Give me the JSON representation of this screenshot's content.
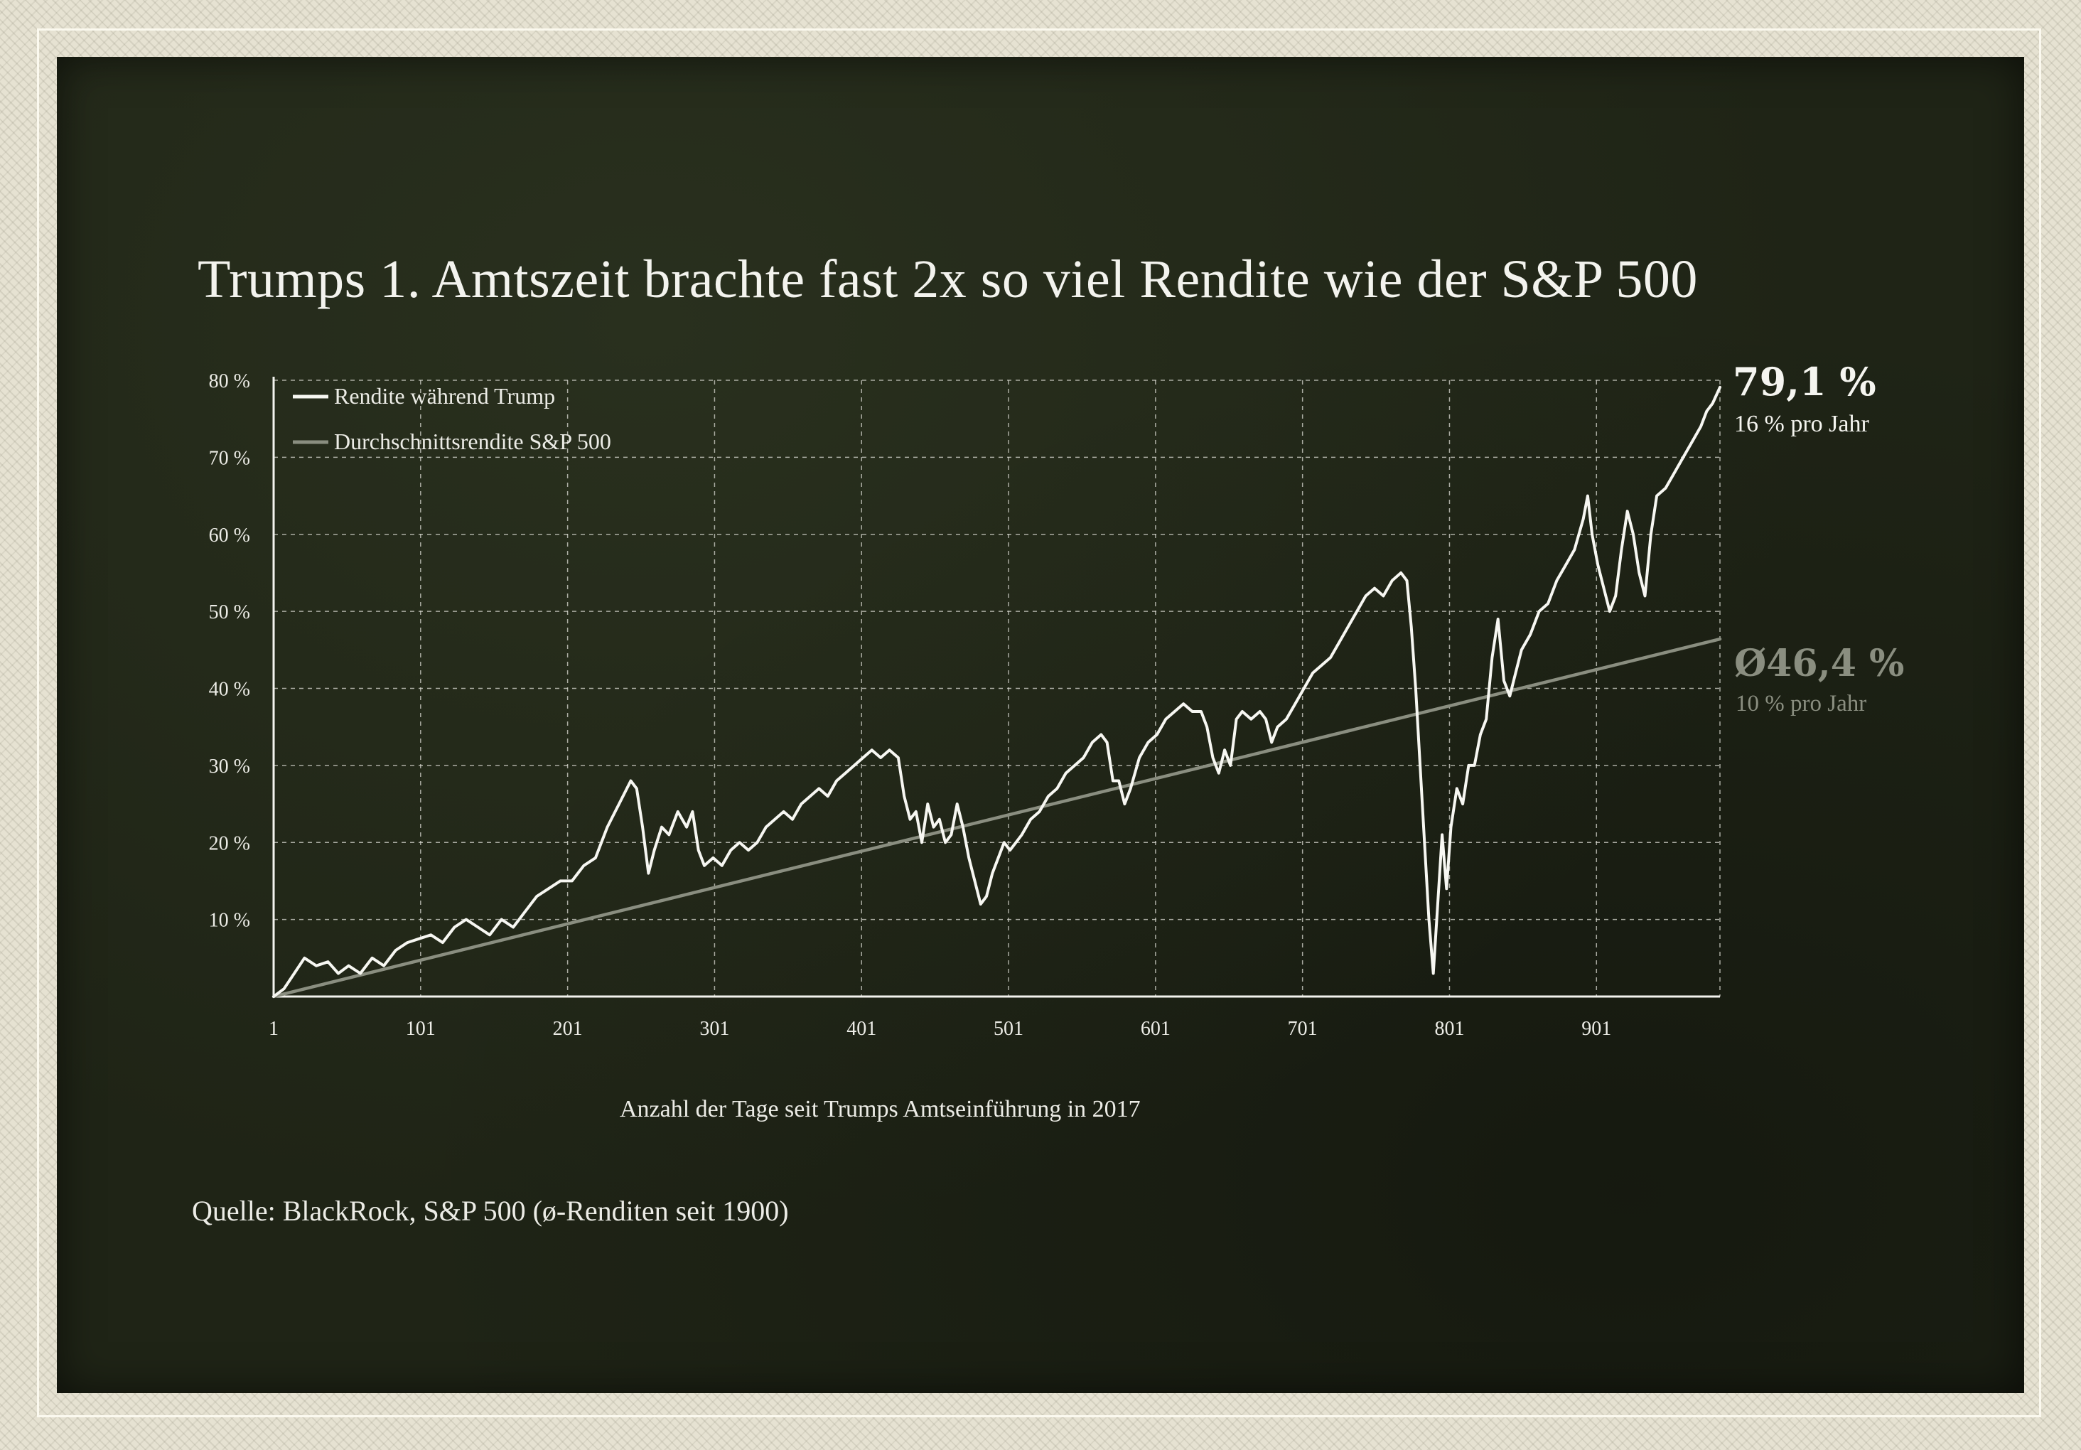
{
  "title": "Trumps 1. Amtszeit brachte fast 2x so viel Rendite wie der S&P 500",
  "source": "Quelle: BlackRock, S&P 500 (ø-Renditen seit 1900)",
  "annotations": {
    "trump_value": "79,1 %",
    "trump_sub": "16 % pro Jahr",
    "avg_value": "Ø46,4 %",
    "avg_sub": "10 % pro Jahr"
  },
  "colors": {
    "background": "#1f2416",
    "trump_line": "#f7f7f2",
    "avg_line": "#8a8e80",
    "grid": "#d8d8d0"
  },
  "chart_data": {
    "type": "line",
    "title": "Trumps 1. Amtszeit brachte fast 2x so viel Rendite wie der S&P 500",
    "xlabel": "Anzahl der Tage seit Trumps Amtseinführung in 2017",
    "ylabel": "",
    "xlim": [
      1,
      985
    ],
    "ylim": [
      0,
      80
    ],
    "x_ticks": [
      1,
      101,
      201,
      301,
      401,
      501,
      601,
      701,
      801,
      901
    ],
    "x_tick_labels": [
      "1",
      "101",
      "201",
      "301",
      "401",
      "501",
      "601",
      "701",
      "801",
      "901"
    ],
    "y_ticks": [
      10,
      20,
      30,
      40,
      50,
      60,
      70,
      80
    ],
    "y_tick_labels": [
      "10 %",
      "20 %",
      "30 %",
      "40 %",
      "50 %",
      "60 %",
      "70 %",
      "80 %"
    ],
    "grid": true,
    "legend_position": "top-left",
    "series": [
      {
        "name": "Rendite während Trump",
        "color": "#f7f7f2",
        "points": [
          [
            1,
            0
          ],
          [
            8,
            1
          ],
          [
            15,
            3
          ],
          [
            22,
            5
          ],
          [
            30,
            4
          ],
          [
            38,
            4.5
          ],
          [
            45,
            3
          ],
          [
            52,
            4
          ],
          [
            60,
            3
          ],
          [
            68,
            5
          ],
          [
            76,
            4
          ],
          [
            84,
            6
          ],
          [
            92,
            7
          ],
          [
            100,
            7.5
          ],
          [
            108,
            8
          ],
          [
            116,
            7
          ],
          [
            124,
            9
          ],
          [
            132,
            10
          ],
          [
            140,
            9
          ],
          [
            148,
            8
          ],
          [
            156,
            10
          ],
          [
            164,
            9
          ],
          [
            172,
            11
          ],
          [
            180,
            13
          ],
          [
            188,
            14
          ],
          [
            196,
            15
          ],
          [
            204,
            15
          ],
          [
            212,
            17
          ],
          [
            220,
            18
          ],
          [
            228,
            22
          ],
          [
            236,
            25
          ],
          [
            244,
            28
          ],
          [
            248,
            27
          ],
          [
            252,
            22
          ],
          [
            256,
            16
          ],
          [
            260,
            19
          ],
          [
            265,
            22
          ],
          [
            270,
            21
          ],
          [
            276,
            24
          ],
          [
            282,
            22
          ],
          [
            286,
            24
          ],
          [
            290,
            19
          ],
          [
            294,
            17
          ],
          [
            300,
            18
          ],
          [
            306,
            17
          ],
          [
            312,
            19
          ],
          [
            318,
            20
          ],
          [
            324,
            19
          ],
          [
            330,
            20
          ],
          [
            336,
            22
          ],
          [
            342,
            23
          ],
          [
            348,
            24
          ],
          [
            354,
            23
          ],
          [
            360,
            25
          ],
          [
            366,
            26
          ],
          [
            372,
            27
          ],
          [
            378,
            26
          ],
          [
            384,
            28
          ],
          [
            390,
            29
          ],
          [
            396,
            30
          ],
          [
            402,
            31
          ],
          [
            408,
            32
          ],
          [
            414,
            31
          ],
          [
            420,
            32
          ],
          [
            426,
            31
          ],
          [
            430,
            26
          ],
          [
            434,
            23
          ],
          [
            438,
            24
          ],
          [
            442,
            20
          ],
          [
            446,
            25
          ],
          [
            450,
            22
          ],
          [
            454,
            23
          ],
          [
            458,
            20
          ],
          [
            462,
            21
          ],
          [
            466,
            25
          ],
          [
            470,
            22
          ],
          [
            474,
            18
          ],
          [
            478,
            15
          ],
          [
            482,
            12
          ],
          [
            486,
            13
          ],
          [
            490,
            16
          ],
          [
            494,
            18
          ],
          [
            498,
            20
          ],
          [
            502,
            19
          ],
          [
            506,
            20
          ],
          [
            510,
            21
          ],
          [
            516,
            23
          ],
          [
            522,
            24
          ],
          [
            528,
            26
          ],
          [
            534,
            27
          ],
          [
            540,
            29
          ],
          [
            546,
            30
          ],
          [
            552,
            31
          ],
          [
            558,
            33
          ],
          [
            564,
            34
          ],
          [
            568,
            33
          ],
          [
            572,
            28
          ],
          [
            576,
            28
          ],
          [
            580,
            25
          ],
          [
            584,
            27
          ],
          [
            590,
            31
          ],
          [
            596,
            33
          ],
          [
            602,
            34
          ],
          [
            608,
            36
          ],
          [
            614,
            37
          ],
          [
            620,
            38
          ],
          [
            626,
            37
          ],
          [
            632,
            37
          ],
          [
            636,
            35
          ],
          [
            640,
            31
          ],
          [
            644,
            29
          ],
          [
            648,
            32
          ],
          [
            652,
            30
          ],
          [
            656,
            36
          ],
          [
            660,
            37
          ],
          [
            666,
            36
          ],
          [
            672,
            37
          ],
          [
            676,
            36
          ],
          [
            680,
            33
          ],
          [
            684,
            35
          ],
          [
            690,
            36
          ],
          [
            696,
            38
          ],
          [
            702,
            40
          ],
          [
            708,
            42
          ],
          [
            714,
            43
          ],
          [
            720,
            44
          ],
          [
            726,
            46
          ],
          [
            732,
            48
          ],
          [
            738,
            50
          ],
          [
            744,
            52
          ],
          [
            750,
            53
          ],
          [
            756,
            52
          ],
          [
            762,
            54
          ],
          [
            768,
            55
          ],
          [
            772,
            54
          ],
          [
            775,
            48
          ],
          [
            778,
            40
          ],
          [
            781,
            30
          ],
          [
            784,
            20
          ],
          [
            787,
            10
          ],
          [
            790,
            3
          ],
          [
            793,
            12
          ],
          [
            796,
            21
          ],
          [
            799,
            14
          ],
          [
            802,
            22
          ],
          [
            806,
            27
          ],
          [
            810,
            25
          ],
          [
            814,
            30
          ],
          [
            818,
            30
          ],
          [
            822,
            34
          ],
          [
            826,
            36
          ],
          [
            830,
            44
          ],
          [
            834,
            49
          ],
          [
            838,
            41
          ],
          [
            842,
            39
          ],
          [
            846,
            42
          ],
          [
            850,
            45
          ],
          [
            856,
            47
          ],
          [
            862,
            50
          ],
          [
            868,
            51
          ],
          [
            874,
            54
          ],
          [
            880,
            56
          ],
          [
            886,
            58
          ],
          [
            892,
            62
          ],
          [
            895,
            65
          ],
          [
            898,
            60
          ],
          [
            902,
            56
          ],
          [
            906,
            53
          ],
          [
            910,
            50
          ],
          [
            914,
            52
          ],
          [
            918,
            58
          ],
          [
            922,
            63
          ],
          [
            926,
            60
          ],
          [
            930,
            55
          ],
          [
            934,
            52
          ],
          [
            938,
            60
          ],
          [
            942,
            65
          ],
          [
            948,
            66
          ],
          [
            954,
            68
          ],
          [
            960,
            70
          ],
          [
            966,
            72
          ],
          [
            972,
            74
          ],
          [
            976,
            76
          ],
          [
            980,
            77
          ],
          [
            985,
            79.1
          ]
        ]
      },
      {
        "name": "Durchschnittsrendite S&P 500",
        "color": "#8a8e80",
        "points": [
          [
            1,
            0
          ],
          [
            985,
            46.4
          ]
        ]
      }
    ]
  }
}
